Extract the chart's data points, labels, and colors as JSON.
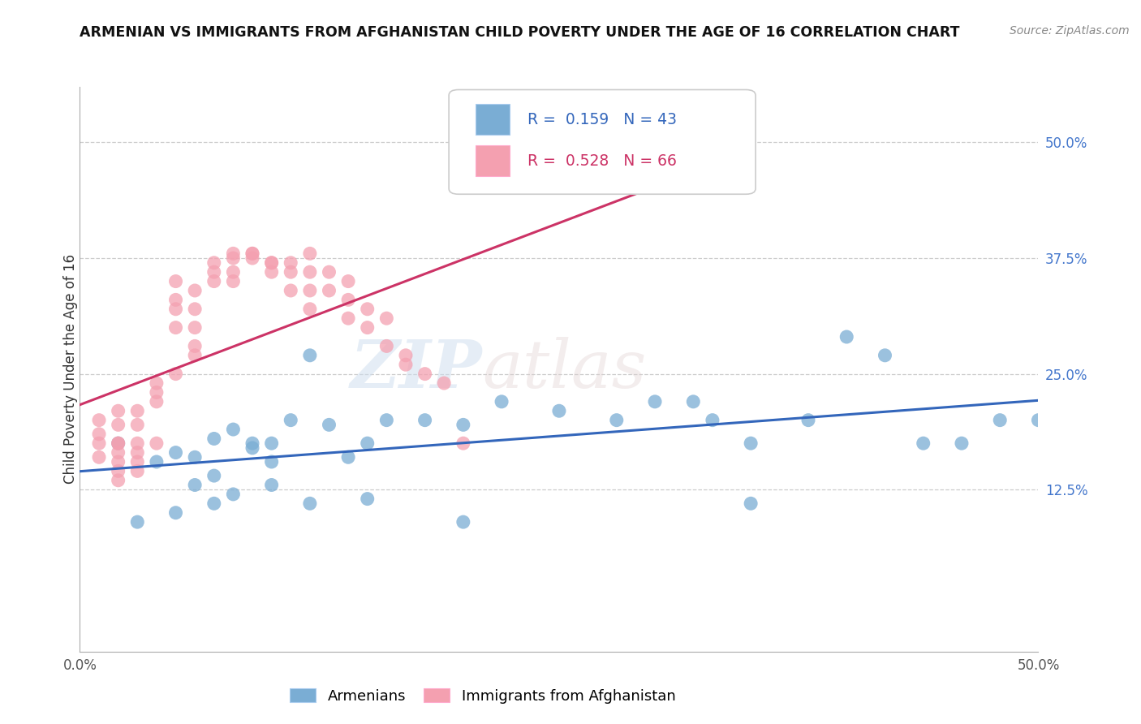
{
  "title": "ARMENIAN VS IMMIGRANTS FROM AFGHANISTAN CHILD POVERTY UNDER THE AGE OF 16 CORRELATION CHART",
  "source": "Source: ZipAtlas.com",
  "ylabel": "Child Poverty Under the Age of 16",
  "xlim": [
    0.0,
    0.5
  ],
  "ylim": [
    -0.05,
    0.56
  ],
  "r_armenian": 0.159,
  "n_armenian": 43,
  "r_afghanistan": 0.528,
  "n_afghanistan": 66,
  "color_armenian": "#7AADD4",
  "color_afghanistan": "#F4A0B0",
  "line_color_armenian": "#3366BB",
  "line_color_afghanistan": "#CC3366",
  "watermark_zip": "ZIP",
  "watermark_atlas": "atlas",
  "armenian_x": [
    0.02,
    0.04,
    0.05,
    0.06,
    0.06,
    0.07,
    0.07,
    0.08,
    0.09,
    0.09,
    0.1,
    0.1,
    0.11,
    0.12,
    0.13,
    0.14,
    0.15,
    0.16,
    0.18,
    0.2,
    0.22,
    0.25,
    0.28,
    0.3,
    0.32,
    0.33,
    0.35,
    0.38,
    0.4,
    0.42,
    0.44,
    0.46,
    0.48,
    0.03,
    0.05,
    0.07,
    0.08,
    0.1,
    0.12,
    0.15,
    0.2,
    0.35,
    0.5
  ],
  "armenian_y": [
    0.175,
    0.155,
    0.165,
    0.16,
    0.13,
    0.18,
    0.14,
    0.19,
    0.175,
    0.17,
    0.175,
    0.155,
    0.2,
    0.27,
    0.195,
    0.16,
    0.175,
    0.2,
    0.2,
    0.195,
    0.22,
    0.21,
    0.2,
    0.22,
    0.22,
    0.2,
    0.175,
    0.2,
    0.29,
    0.27,
    0.175,
    0.175,
    0.2,
    0.09,
    0.1,
    0.11,
    0.12,
    0.13,
    0.11,
    0.115,
    0.09,
    0.11,
    0.2
  ],
  "afghanistan_x": [
    0.01,
    0.01,
    0.01,
    0.01,
    0.02,
    0.02,
    0.02,
    0.02,
    0.02,
    0.02,
    0.02,
    0.02,
    0.03,
    0.03,
    0.03,
    0.03,
    0.03,
    0.03,
    0.04,
    0.04,
    0.04,
    0.04,
    0.05,
    0.05,
    0.05,
    0.05,
    0.05,
    0.06,
    0.06,
    0.06,
    0.06,
    0.06,
    0.07,
    0.07,
    0.07,
    0.08,
    0.08,
    0.08,
    0.08,
    0.09,
    0.09,
    0.09,
    0.1,
    0.1,
    0.1,
    0.11,
    0.11,
    0.11,
    0.12,
    0.12,
    0.12,
    0.12,
    0.13,
    0.13,
    0.14,
    0.14,
    0.14,
    0.15,
    0.15,
    0.16,
    0.16,
    0.17,
    0.17,
    0.18,
    0.19,
    0.2
  ],
  "afghanistan_y": [
    0.175,
    0.2,
    0.185,
    0.16,
    0.175,
    0.21,
    0.195,
    0.175,
    0.165,
    0.155,
    0.145,
    0.135,
    0.21,
    0.195,
    0.175,
    0.165,
    0.155,
    0.145,
    0.24,
    0.23,
    0.22,
    0.175,
    0.25,
    0.3,
    0.32,
    0.33,
    0.35,
    0.27,
    0.28,
    0.3,
    0.32,
    0.34,
    0.35,
    0.36,
    0.37,
    0.38,
    0.375,
    0.36,
    0.35,
    0.38,
    0.38,
    0.375,
    0.37,
    0.37,
    0.36,
    0.37,
    0.36,
    0.34,
    0.38,
    0.36,
    0.34,
    0.32,
    0.36,
    0.34,
    0.35,
    0.33,
    0.31,
    0.32,
    0.3,
    0.31,
    0.28,
    0.27,
    0.26,
    0.25,
    0.24,
    0.175
  ]
}
